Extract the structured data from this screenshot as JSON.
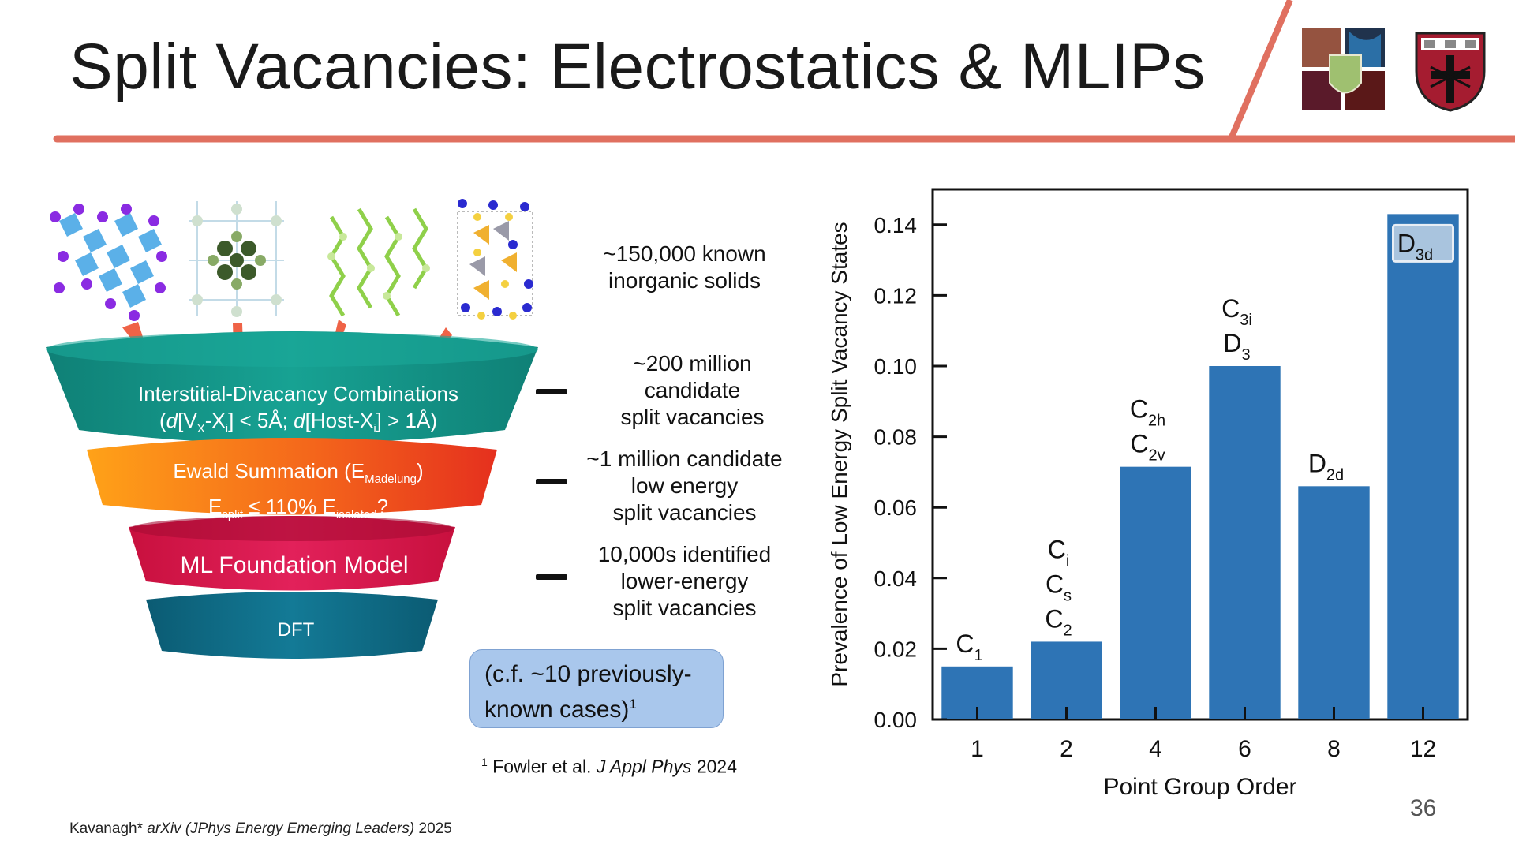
{
  "title": "Split Vacancies: Electrostatics & MLIPs",
  "colors": {
    "accent_line": "#e07060",
    "bar": "#2e74b5",
    "funnel_top": "#14978a",
    "funnel_ewald": "#f06a1c",
    "funnel_ml": "#d81b4c",
    "funnel_dft": "#106a85",
    "callout_bg": "#a9c7ec"
  },
  "logos": [
    "college-crest-logo",
    "harvard-veritas-shield-logo"
  ],
  "structures": [
    "perovskite-structure",
    "cubic-cluster-structure",
    "chain-structure",
    "layered-structure"
  ],
  "funnel": {
    "layer1": {
      "line1": "Interstitial-Divacancy Combinations",
      "line2": {
        "open": "(",
        "d1": "d",
        "v1": "[V",
        "sub1": "X",
        "mid1": "-X",
        "sub2": "i",
        "close1": "] < 5Å; ",
        "d2": "d",
        "v2": "[Host-X",
        "sub3": "i",
        "close2": "] > 1Å)"
      }
    },
    "layer2": {
      "line1_main": "Ewald Summation (E",
      "line1_sub": "Madelung",
      "line1_end": ")",
      "line2_a": "E",
      "line2_sub1": "split",
      "line2_b": " ≤ 110% E",
      "line2_sub2": "isolated",
      "line2_end": "?"
    },
    "layer3": {
      "label": "ML Foundation Model"
    },
    "layer4": {
      "label": "DFT"
    }
  },
  "descriptions": {
    "d0": [
      "~150,000 known",
      "inorganic solids"
    ],
    "d1": [
      "~200 million",
      "candidate",
      "split vacancies"
    ],
    "d2": [
      "~1 million candidate",
      "low energy",
      "split vacancies"
    ],
    "d3": [
      "10,000s identified",
      "lower-energy",
      "split vacancies"
    ]
  },
  "callout": {
    "line1": "(c.f. ~10 previously-",
    "line2": "known cases)",
    "sup": "1"
  },
  "reference": {
    "sup": "1",
    "authors": " Fowler et al. ",
    "journal": "J Appl Phys",
    "year": " 2024"
  },
  "footer": {
    "author": "Kavanagh* ",
    "venue": "arXiv (JPhys Energy Emerging Leaders)",
    "year": " 2025"
  },
  "page_number": "36",
  "chart_data": {
    "type": "bar",
    "categories": [
      "1",
      "2",
      "4",
      "6",
      "8",
      "12"
    ],
    "values": [
      0.015,
      0.022,
      0.0715,
      0.1,
      0.066,
      0.143
    ],
    "bar_labels": [
      [
        [
          "C",
          "1"
        ]
      ],
      [
        [
          "C",
          "i"
        ],
        [
          "C",
          "s"
        ],
        [
          "C",
          "2"
        ]
      ],
      [
        [
          "C",
          "2h"
        ],
        [
          "C",
          "2v"
        ]
      ],
      [
        [
          "C",
          "3i"
        ],
        [
          "D",
          "3"
        ]
      ],
      [
        [
          "D",
          "2d"
        ]
      ],
      [
        [
          "D",
          "3d"
        ]
      ]
    ],
    "xlabel": "Point Group Order",
    "ylabel": "Prevalence of Low Energy Split Vacancy States",
    "ylim": [
      0,
      0.15
    ],
    "yticks": [
      0,
      0.02,
      0.04,
      0.06,
      0.08,
      0.1,
      0.12,
      0.14
    ],
    "ytick_labels": [
      "0.00",
      "0.02",
      "0.04",
      "0.06",
      "0.08",
      "0.10",
      "0.12",
      "0.14"
    ],
    "grid": false,
    "legend": "none"
  }
}
